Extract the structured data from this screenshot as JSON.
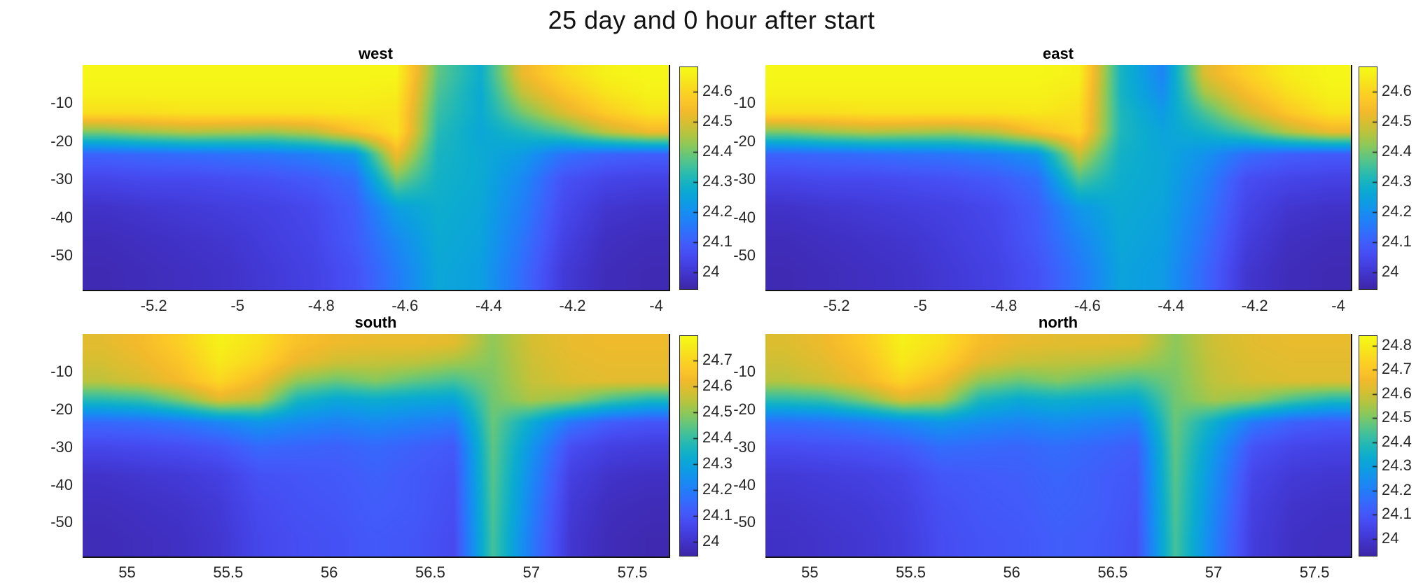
{
  "figure": {
    "title": "25 day and 0 hour after start"
  },
  "style": {
    "background": "#ffffff",
    "axis_text_color": "#262626",
    "title_color": "#111111",
    "colormap": "parula"
  },
  "chart_data": [
    {
      "type": "heatmap",
      "title": "west",
      "xlim": [
        -5.37,
        -3.97
      ],
      "x_centers": [
        -5.32,
        -5.22,
        -5.12,
        -5.02,
        -4.92,
        -4.82,
        -4.72,
        -4.62,
        -4.52,
        -4.42,
        -4.32,
        -4.22,
        -4.12,
        -4.02
      ],
      "x_ticks": [
        -5.2,
        -5,
        -4.8,
        -4.6,
        -4.4,
        -4.2,
        -4
      ],
      "x_tick_labels": [
        "-5.2",
        "-5",
        "-4.8",
        "-4.6",
        "-4.4",
        "-4.2",
        "-4"
      ],
      "depth_edges": [
        0,
        -5,
        -10,
        -15,
        -20,
        -27,
        -33,
        -42,
        -50,
        -59
      ],
      "y_ticks": [
        -10,
        -20,
        -30,
        -40,
        -50
      ],
      "y_tick_labels": [
        "-10",
        "-20",
        "-30",
        "-40",
        "-50"
      ],
      "values": [
        [
          24.67,
          24.67,
          24.67,
          24.67,
          24.67,
          24.67,
          24.67,
          24.67,
          24.38,
          24.28,
          24.52,
          24.61,
          24.66,
          24.67
        ],
        [
          24.66,
          24.66,
          24.66,
          24.66,
          24.66,
          24.66,
          24.66,
          24.65,
          24.36,
          24.27,
          24.47,
          24.56,
          24.63,
          24.66
        ],
        [
          24.62,
          24.62,
          24.63,
          24.63,
          24.63,
          24.63,
          24.64,
          24.63,
          24.34,
          24.27,
          24.4,
          24.5,
          24.58,
          24.63
        ],
        [
          24.41,
          24.44,
          24.46,
          24.45,
          24.44,
          24.47,
          24.55,
          24.63,
          24.32,
          24.26,
          24.31,
          24.37,
          24.47,
          24.53
        ],
        [
          24.11,
          24.12,
          24.13,
          24.14,
          24.15,
          24.17,
          24.21,
          24.53,
          24.3,
          24.27,
          24.23,
          24.14,
          24.11,
          24.1
        ],
        [
          24.04,
          24.05,
          24.05,
          24.06,
          24.07,
          24.09,
          24.13,
          24.4,
          24.29,
          24.27,
          24.19,
          24.07,
          24.04,
          24.03
        ],
        [
          23.99,
          24.0,
          24.01,
          24.02,
          24.03,
          24.05,
          24.1,
          24.24,
          24.28,
          24.26,
          24.17,
          24.05,
          24.0,
          23.99
        ],
        [
          23.97,
          23.98,
          23.99,
          24.0,
          24.02,
          24.04,
          24.09,
          24.19,
          24.27,
          24.25,
          24.15,
          24.03,
          23.98,
          23.97
        ],
        [
          23.96,
          23.97,
          23.98,
          23.99,
          24.01,
          24.03,
          24.07,
          24.16,
          24.26,
          24.24,
          24.13,
          24.01,
          23.97,
          23.96
        ]
      ],
      "colorbar": {
        "min": 23.945,
        "max": 24.68,
        "ticks": [
          24,
          24.1,
          24.2,
          24.3,
          24.4,
          24.5,
          24.6
        ],
        "tick_labels": [
          "24",
          "24.1",
          "24.2",
          "24.3",
          "24.4",
          "24.5",
          "24.6"
        ]
      }
    },
    {
      "type": "heatmap",
      "title": "east",
      "xlim": [
        -5.37,
        -3.97
      ],
      "x_centers": [
        -5.32,
        -5.22,
        -5.12,
        -5.02,
        -4.92,
        -4.82,
        -4.72,
        -4.62,
        -4.52,
        -4.42,
        -4.32,
        -4.22,
        -4.12,
        -4.02
      ],
      "x_ticks": [
        -5.2,
        -5,
        -4.8,
        -4.6,
        -4.4,
        -4.2,
        -4
      ],
      "x_tick_labels": [
        "-5.2",
        "-5",
        "-4.8",
        "-4.6",
        "-4.4",
        "-4.2",
        "-4"
      ],
      "depth_edges": [
        0,
        -5,
        -10,
        -15,
        -20,
        -27,
        -33,
        -42,
        -50,
        -59
      ],
      "y_ticks": [
        -10,
        -20,
        -30,
        -40,
        -50
      ],
      "y_tick_labels": [
        "-10",
        "-20",
        "-30",
        "-40",
        "-50"
      ],
      "values": [
        [
          24.67,
          24.67,
          24.67,
          24.67,
          24.67,
          24.67,
          24.67,
          24.66,
          24.3,
          24.18,
          24.5,
          24.59,
          24.65,
          24.67
        ],
        [
          24.66,
          24.66,
          24.66,
          24.66,
          24.66,
          24.66,
          24.66,
          24.64,
          24.3,
          24.2,
          24.44,
          24.54,
          24.62,
          24.66
        ],
        [
          24.62,
          24.62,
          24.63,
          24.63,
          24.63,
          24.63,
          24.64,
          24.62,
          24.31,
          24.23,
          24.36,
          24.48,
          24.57,
          24.63
        ],
        [
          24.41,
          24.44,
          24.46,
          24.45,
          24.44,
          24.47,
          24.55,
          24.61,
          24.31,
          24.25,
          24.29,
          24.36,
          24.46,
          24.52
        ],
        [
          24.11,
          24.12,
          24.13,
          24.14,
          24.15,
          24.17,
          24.21,
          24.48,
          24.29,
          24.26,
          24.21,
          24.13,
          24.1,
          24.09
        ],
        [
          24.04,
          24.05,
          24.05,
          24.06,
          24.07,
          24.09,
          24.13,
          24.36,
          24.28,
          24.26,
          24.18,
          24.06,
          24.04,
          24.03
        ],
        [
          23.99,
          24.0,
          24.01,
          24.02,
          24.03,
          24.05,
          24.1,
          24.22,
          24.27,
          24.25,
          24.16,
          24.04,
          24.0,
          23.99
        ],
        [
          23.97,
          23.98,
          23.99,
          24.0,
          24.02,
          24.04,
          24.09,
          24.18,
          24.26,
          24.24,
          24.14,
          24.02,
          23.98,
          23.97
        ],
        [
          23.96,
          23.97,
          23.98,
          23.99,
          24.01,
          24.03,
          24.07,
          24.15,
          24.25,
          24.23,
          24.12,
          24.0,
          23.97,
          23.96
        ]
      ],
      "colorbar": {
        "min": 23.945,
        "max": 24.68,
        "ticks": [
          24,
          24.1,
          24.2,
          24.3,
          24.4,
          24.5,
          24.6
        ],
        "tick_labels": [
          "24",
          "24.1",
          "24.2",
          "24.3",
          "24.4",
          "24.5",
          "24.6"
        ]
      }
    },
    {
      "type": "heatmap",
      "title": "south",
      "xlim": [
        54.78,
        57.68
      ],
      "x_centers": [
        54.88,
        55.07,
        55.26,
        55.46,
        55.65,
        55.84,
        56.04,
        56.23,
        56.42,
        56.62,
        56.81,
        57.0,
        57.2,
        57.39,
        57.58
      ],
      "x_ticks": [
        55,
        55.5,
        56,
        56.5,
        57,
        57.5
      ],
      "x_tick_labels": [
        "55",
        "55.5",
        "56",
        "56.5",
        "57",
        "57.5"
      ],
      "depth_edges": [
        0,
        -5,
        -10,
        -15,
        -20,
        -27,
        -33,
        -42,
        -50,
        -59
      ],
      "y_ticks": [
        -10,
        -20,
        -30,
        -40,
        -50
      ],
      "y_tick_labels": [
        "-10",
        "-20",
        "-30",
        "-40",
        "-50"
      ],
      "values": [
        [
          24.6,
          24.63,
          24.69,
          24.77,
          24.73,
          24.65,
          24.62,
          24.61,
          24.61,
          24.6,
          24.5,
          24.58,
          24.61,
          24.62,
          24.62
        ],
        [
          24.58,
          24.61,
          24.66,
          24.75,
          24.7,
          24.61,
          24.57,
          24.56,
          24.55,
          24.52,
          24.49,
          24.57,
          24.6,
          24.61,
          24.61
        ],
        [
          24.55,
          24.58,
          24.63,
          24.71,
          24.63,
          24.5,
          24.46,
          24.49,
          24.45,
          24.42,
          24.48,
          24.56,
          24.59,
          24.6,
          24.6
        ],
        [
          24.38,
          24.4,
          24.48,
          24.59,
          24.55,
          24.36,
          24.31,
          24.33,
          24.31,
          24.3,
          24.47,
          24.53,
          24.5,
          24.42,
          24.37
        ],
        [
          24.15,
          24.16,
          24.18,
          24.22,
          24.26,
          24.23,
          24.21,
          24.23,
          24.21,
          24.19,
          24.46,
          24.32,
          24.18,
          24.12,
          24.1
        ],
        [
          24.06,
          24.07,
          24.08,
          24.1,
          24.15,
          24.14,
          24.13,
          24.15,
          24.13,
          24.11,
          24.45,
          24.26,
          24.08,
          24.04,
          24.03
        ],
        [
          24.0,
          24.01,
          24.02,
          24.04,
          24.09,
          24.1,
          24.11,
          24.13,
          24.11,
          24.09,
          24.44,
          24.23,
          24.04,
          24.0,
          23.99
        ],
        [
          23.98,
          23.99,
          24.0,
          24.02,
          24.07,
          24.09,
          24.1,
          24.12,
          24.11,
          24.08,
          24.43,
          24.21,
          24.02,
          23.98,
          23.97
        ],
        [
          23.97,
          23.98,
          23.99,
          24.01,
          24.06,
          24.08,
          24.09,
          24.11,
          24.1,
          24.07,
          24.42,
          24.19,
          24.01,
          23.97,
          23.96
        ]
      ],
      "colorbar": {
        "min": 23.946,
        "max": 24.796,
        "ticks": [
          24,
          24.1,
          24.2,
          24.3,
          24.4,
          24.5,
          24.6,
          24.7
        ],
        "tick_labels": [
          "24",
          "24.1",
          "24.2",
          "24.3",
          "24.4",
          "24.5",
          "24.6",
          "24.7"
        ]
      }
    },
    {
      "type": "heatmap",
      "title": "north",
      "xlim": [
        54.78,
        57.68
      ],
      "x_centers": [
        54.88,
        55.07,
        55.26,
        55.46,
        55.65,
        55.84,
        56.04,
        56.23,
        56.42,
        56.62,
        56.81,
        57.0,
        57.2,
        57.39,
        57.58
      ],
      "x_ticks": [
        55,
        55.5,
        56,
        56.5,
        57,
        57.5
      ],
      "x_tick_labels": [
        "55",
        "55.5",
        "56",
        "56.5",
        "57",
        "57.5"
      ],
      "depth_edges": [
        0,
        -5,
        -10,
        -15,
        -20,
        -27,
        -33,
        -42,
        -50,
        -59
      ],
      "y_ticks": [
        -10,
        -20,
        -30,
        -40,
        -50
      ],
      "y_tick_labels": [
        "-10",
        "-20",
        "-30",
        "-40",
        "-50"
      ],
      "values": [
        [
          24.62,
          24.65,
          24.71,
          24.81,
          24.77,
          24.67,
          24.64,
          24.63,
          24.63,
          24.62,
          24.52,
          24.6,
          24.63,
          24.64,
          24.64
        ],
        [
          24.6,
          24.63,
          24.68,
          24.79,
          24.73,
          24.63,
          24.59,
          24.58,
          24.57,
          24.55,
          24.51,
          24.59,
          24.62,
          24.63,
          24.63
        ],
        [
          24.57,
          24.6,
          24.65,
          24.74,
          24.66,
          24.52,
          24.48,
          24.51,
          24.47,
          24.44,
          24.5,
          24.58,
          24.61,
          24.62,
          24.62
        ],
        [
          24.4,
          24.42,
          24.5,
          24.61,
          24.57,
          24.38,
          24.33,
          24.35,
          24.33,
          24.32,
          24.49,
          24.55,
          24.52,
          24.44,
          24.39
        ],
        [
          24.16,
          24.17,
          24.19,
          24.23,
          24.27,
          24.24,
          24.22,
          24.24,
          24.22,
          24.2,
          24.48,
          24.34,
          24.19,
          24.13,
          24.11
        ],
        [
          24.07,
          24.08,
          24.09,
          24.11,
          24.16,
          24.15,
          24.14,
          24.16,
          24.14,
          24.12,
          24.47,
          24.28,
          24.09,
          24.05,
          24.04
        ],
        [
          24.01,
          24.02,
          24.03,
          24.05,
          24.1,
          24.11,
          24.12,
          24.14,
          24.12,
          24.1,
          24.46,
          24.25,
          24.05,
          24.01,
          24.0
        ],
        [
          23.99,
          24.0,
          24.01,
          24.03,
          24.08,
          24.1,
          24.11,
          24.13,
          24.12,
          24.09,
          24.45,
          24.23,
          24.03,
          23.99,
          23.98
        ],
        [
          23.98,
          23.99,
          24.0,
          24.02,
          24.07,
          24.09,
          24.1,
          24.12,
          24.11,
          24.08,
          24.44,
          24.21,
          24.02,
          23.98,
          23.97
        ]
      ],
      "colorbar": {
        "min": 23.93,
        "max": 24.84,
        "ticks": [
          24,
          24.1,
          24.2,
          24.3,
          24.4,
          24.5,
          24.6,
          24.7,
          24.8
        ],
        "tick_labels": [
          "24",
          "24.1",
          "24.2",
          "24.3",
          "24.4",
          "24.5",
          "24.6",
          "24.7",
          "24.8"
        ]
      }
    }
  ]
}
